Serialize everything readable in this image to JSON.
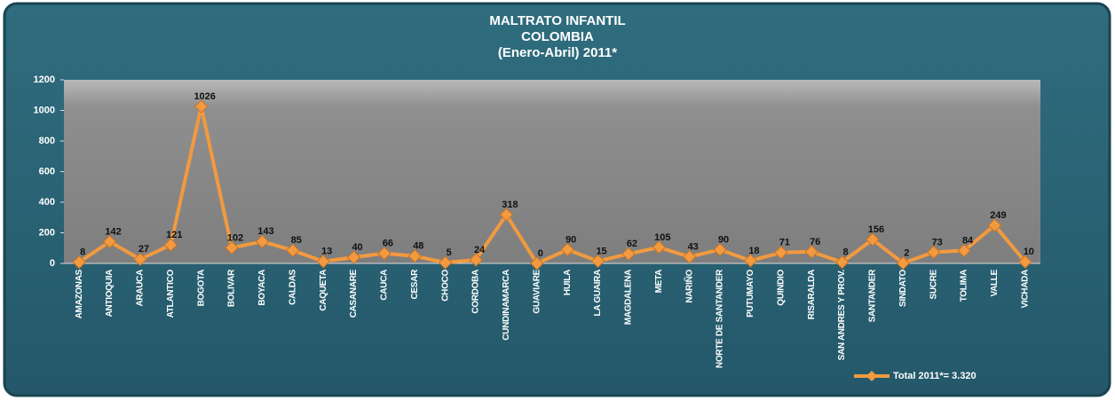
{
  "chart_data": {
    "type": "line",
    "title": [
      "MALTRATO INFANTIL",
      "COLOMBIA",
      "(Enero-Abril) 2011*"
    ],
    "categories": [
      "AMAZONAS",
      "ANTIOQUIA",
      "ARAUCA",
      "ATLANTICO",
      "BOGOTA",
      "BOLIVAR",
      "BOYACA",
      "CALDAS",
      "CAQUETA",
      "CASANARE",
      "CAUCA",
      "CESAR",
      "CHOCO",
      "CORDOBA",
      "CUNDINAMARCA",
      "GUAVIARE",
      "HUILA",
      "LA GUAIRA",
      "MAGDALENA",
      "META",
      "NARIÑO",
      "NORTE DE SANTANDER",
      "PUTUMAYO",
      "QUINDIO",
      "RISARALDA",
      "SAN ANDRES Y PROV.",
      "SANTANDER",
      "SINDATO",
      "SUCRE",
      "TOLIMA",
      "VALLE",
      "VICHADA"
    ],
    "series": [
      {
        "name": "Total 2011*= 3.320",
        "color": "#f29a3f",
        "values": [
          8,
          142,
          27,
          121,
          1026,
          102,
          143,
          85,
          13,
          40,
          66,
          48,
          5,
          24,
          318,
          0,
          90,
          15,
          62,
          105,
          43,
          90,
          18,
          71,
          76,
          8,
          156,
          2,
          73,
          84,
          249,
          10
        ]
      }
    ],
    "ylim": [
      0,
      1200
    ],
    "yticks": [
      0,
      200,
      400,
      600,
      800,
      1000,
      1200
    ],
    "legend": "bottom-right"
  }
}
